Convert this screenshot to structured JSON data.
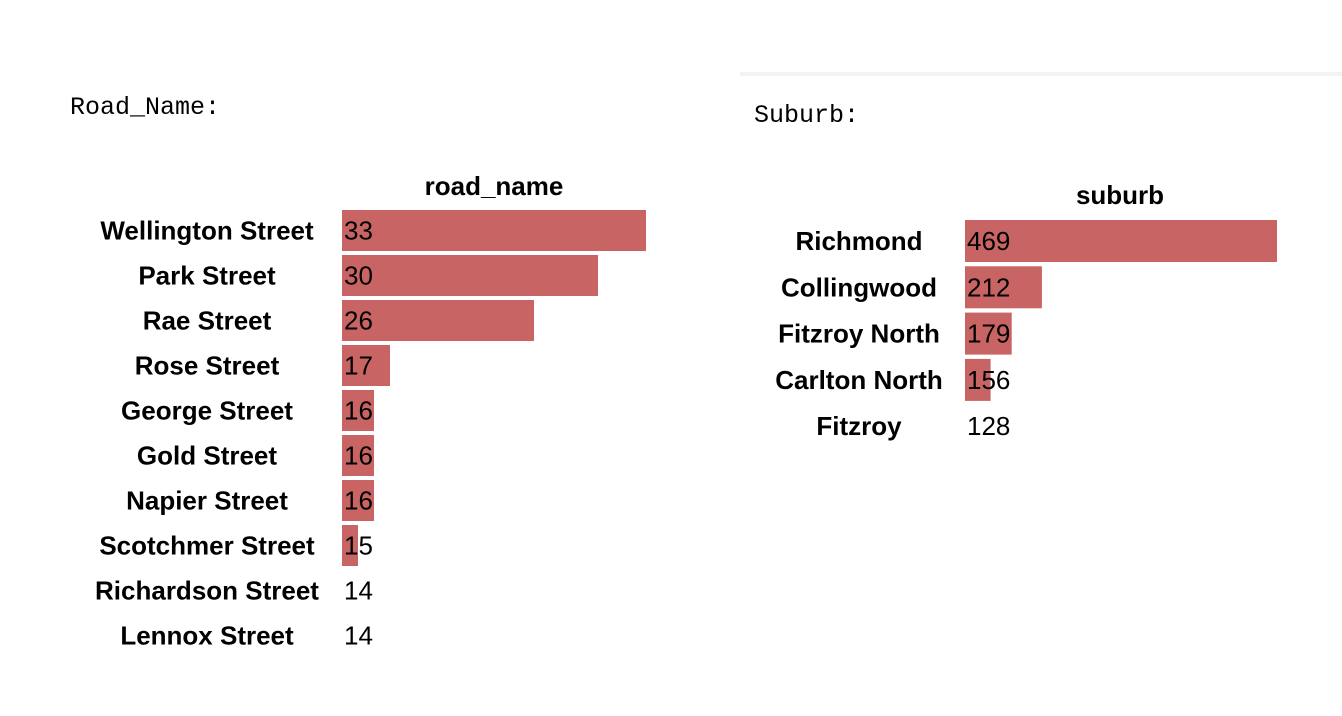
{
  "outputs": {
    "road_label": "Road_Name:",
    "suburb_label": "Suburb:"
  },
  "colors": {
    "bar": "#c86464",
    "text": "#000000",
    "background": "#ffffff"
  },
  "chart_data": [
    {
      "type": "bar",
      "orientation": "horizontal",
      "title": "road_name",
      "categories": [
        "Wellington Street",
        "Park Street",
        "Rae Street",
        "Rose Street",
        "George Street",
        "Gold Street",
        "Napier Street",
        "Scotchmer Street",
        "Richardson Street",
        "Lennox Street"
      ],
      "values": [
        33,
        30,
        26,
        17,
        16,
        16,
        16,
        15,
        14,
        14
      ],
      "value_labels": [
        "33",
        "30",
        "26",
        "17",
        "16",
        "16",
        "16",
        "15",
        "14",
        "14"
      ],
      "xlim": [
        14,
        33
      ],
      "grid": false
    },
    {
      "type": "bar",
      "orientation": "horizontal",
      "title": "suburb",
      "categories": [
        "Richmond",
        "Collingwood",
        "Fitzroy North",
        "Carlton North",
        "Fitzroy"
      ],
      "values": [
        469,
        212,
        179,
        156,
        128
      ],
      "value_labels": [
        "469",
        "212",
        "179",
        "156",
        "128"
      ],
      "xlim": [
        128,
        469
      ],
      "grid": false
    }
  ]
}
